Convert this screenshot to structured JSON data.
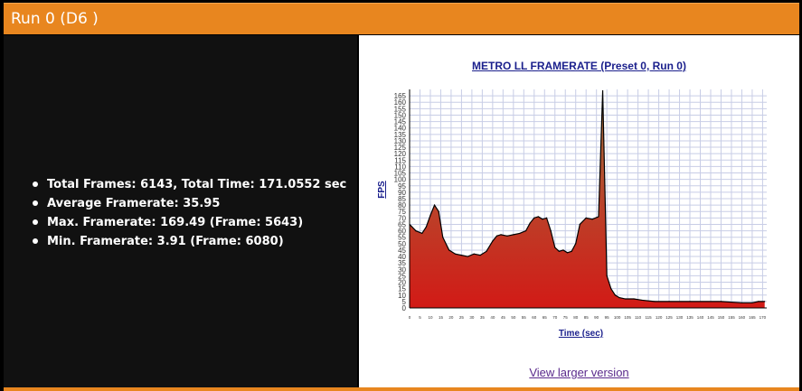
{
  "header": {
    "title": "Run 0 (D6 )"
  },
  "stats": [
    "Total Frames: 6143, Total Time: 171.0552 sec",
    "Average Framerate: 35.95",
    "Max. Framerate: 169.49 (Frame: 5643)",
    "Min. Framerate: 3.91 (Frame: 6080)"
  ],
  "link": {
    "label": "View larger version"
  },
  "colors": {
    "header": "#e8861f",
    "fill_top": "#a07040",
    "fill_bottom": "#d21a16",
    "line": "#000000"
  },
  "chart_data": {
    "type": "area",
    "title": "METRO LL FRAMERATE (Preset 0, Run 0)",
    "xlabel": "Time (sec)",
    "ylabel": "FPS",
    "xlim": [
      0,
      172
    ],
    "ylim": [
      0,
      170
    ],
    "grid": true,
    "y_ticks": [
      0,
      5,
      10,
      15,
      20,
      25,
      30,
      35,
      40,
      45,
      50,
      55,
      60,
      65,
      70,
      75,
      80,
      85,
      90,
      95,
      100,
      105,
      110,
      115,
      120,
      125,
      130,
      135,
      140,
      145,
      150,
      155,
      160,
      165
    ],
    "x_ticks": [
      0,
      5,
      10,
      15,
      20,
      25,
      30,
      35,
      40,
      45,
      50,
      55,
      60,
      65,
      70,
      75,
      80,
      85,
      90,
      95,
      100,
      105,
      110,
      115,
      120,
      125,
      130,
      135,
      140,
      145,
      150,
      155,
      160,
      165,
      170
    ],
    "x": [
      0,
      3,
      6,
      8,
      10,
      12,
      14,
      16,
      19,
      22,
      25,
      28,
      31,
      34,
      37,
      40,
      42,
      44,
      47,
      50,
      53,
      56,
      58,
      60,
      62,
      64,
      66,
      68,
      70,
      72,
      74,
      76,
      78,
      80,
      82,
      85,
      88,
      91,
      93,
      95,
      97,
      99,
      101,
      104,
      108,
      112,
      118,
      125,
      135,
      150,
      160,
      165,
      168,
      171
    ],
    "values": [
      65,
      60,
      58,
      63,
      72,
      80,
      75,
      55,
      45,
      42,
      41,
      40,
      42,
      41,
      44,
      52,
      56,
      57,
      56,
      57,
      58,
      60,
      66,
      70,
      71,
      69,
      70,
      60,
      47,
      44,
      45,
      43,
      44,
      50,
      65,
      70,
      69,
      71,
      169,
      25,
      15,
      10,
      8,
      7,
      7,
      6,
      5,
      5,
      5,
      5,
      4,
      4,
      5,
      5
    ]
  }
}
